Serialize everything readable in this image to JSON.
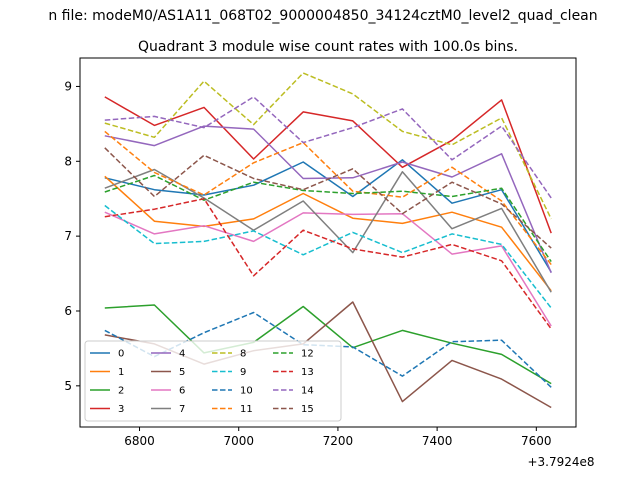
{
  "suptitle": "n file: modeM0/AS1A11_068T02_9000004850_34124cztM0_level2_quad_clean",
  "chart_data": {
    "type": "line",
    "title": "Quadrant 3 module wise count rates with 100.0s bins.",
    "xlabel": "",
    "ylabel": "",
    "x_offset_label": "+3.7924e8",
    "x": [
      6730,
      6830,
      6930,
      7030,
      7130,
      7230,
      7330,
      7430,
      7530,
      7630
    ],
    "xlim": [
      6680,
      7680
    ],
    "ylim": [
      4.45,
      9.38
    ],
    "xticks": [
      6800,
      7000,
      7200,
      7400,
      7600
    ],
    "xtick_labels": [
      "6800",
      "7000",
      "7200",
      "7400",
      "7600"
    ],
    "yticks": [
      5,
      6,
      7,
      8,
      9
    ],
    "ytick_labels": [
      "5",
      "6",
      "7",
      "8",
      "9"
    ],
    "grid": false,
    "legend_position": "lower-left",
    "legend_columns": 4,
    "series": [
      {
        "name": "0",
        "color": "#1f77b4",
        "dash": "solid",
        "values": [
          7.78,
          7.62,
          7.55,
          7.68,
          7.99,
          7.53,
          8.02,
          7.44,
          7.62,
          6.52
        ]
      },
      {
        "name": "1",
        "color": "#ff7f0e",
        "dash": "solid",
        "values": [
          7.8,
          7.2,
          7.13,
          7.23,
          7.57,
          7.24,
          7.17,
          7.32,
          7.12,
          6.27
        ]
      },
      {
        "name": "2",
        "color": "#2ca02c",
        "dash": "solid",
        "values": [
          6.04,
          6.08,
          5.44,
          5.58,
          6.06,
          5.51,
          5.74,
          5.57,
          5.42,
          5.03
        ]
      },
      {
        "name": "3",
        "color": "#d62728",
        "dash": "solid",
        "values": [
          8.86,
          8.48,
          8.72,
          8.03,
          8.66,
          8.54,
          7.92,
          8.28,
          8.82,
          7.04
        ]
      },
      {
        "name": "4",
        "color": "#9467bd",
        "dash": "solid",
        "values": [
          8.34,
          8.21,
          8.47,
          8.43,
          7.77,
          7.78,
          7.99,
          7.79,
          8.1,
          6.51
        ]
      },
      {
        "name": "5",
        "color": "#8c564b",
        "dash": "solid",
        "values": [
          5.68,
          5.56,
          5.29,
          5.47,
          5.56,
          6.12,
          4.79,
          5.34,
          5.09,
          4.71
        ]
      },
      {
        "name": "6",
        "color": "#e377c2",
        "dash": "solid",
        "values": [
          7.32,
          7.03,
          7.14,
          6.93,
          7.31,
          7.29,
          7.3,
          6.76,
          6.87,
          5.8
        ]
      },
      {
        "name": "7",
        "color": "#7f7f7f",
        "dash": "solid",
        "values": [
          7.64,
          7.89,
          7.51,
          7.08,
          7.47,
          6.78,
          7.86,
          7.1,
          7.37,
          6.25
        ]
      },
      {
        "name": "8",
        "color": "#bcbd22",
        "dash": "dashed",
        "values": [
          8.51,
          8.32,
          9.07,
          8.49,
          9.18,
          8.9,
          8.4,
          8.22,
          8.58,
          7.23
        ]
      },
      {
        "name": "9",
        "color": "#17becf",
        "dash": "dashed",
        "values": [
          7.41,
          6.9,
          6.93,
          7.07,
          6.75,
          7.05,
          6.78,
          7.03,
          6.89,
          6.04
        ]
      },
      {
        "name": "10",
        "color": "#1f77b4",
        "dash": "dashed",
        "values": [
          5.74,
          5.39,
          5.71,
          5.98,
          5.55,
          5.52,
          5.13,
          5.59,
          5.61,
          4.98
        ]
      },
      {
        "name": "11",
        "color": "#ff7f0e",
        "dash": "dashed",
        "values": [
          8.4,
          7.85,
          7.55,
          7.98,
          8.25,
          7.6,
          7.52,
          7.92,
          7.47,
          6.62
        ]
      },
      {
        "name": "12",
        "color": "#2ca02c",
        "dash": "dashed",
        "values": [
          7.59,
          7.81,
          7.48,
          7.72,
          7.61,
          7.57,
          7.6,
          7.53,
          7.64,
          6.66
        ]
      },
      {
        "name": "13",
        "color": "#d62728",
        "dash": "dashed",
        "values": [
          7.26,
          7.36,
          7.5,
          6.47,
          7.08,
          6.83,
          6.72,
          6.89,
          6.67,
          5.76
        ]
      },
      {
        "name": "14",
        "color": "#9467bd",
        "dash": "dashed",
        "values": [
          8.55,
          8.6,
          8.45,
          8.86,
          8.25,
          8.45,
          8.7,
          8.02,
          8.47,
          7.51
        ]
      },
      {
        "name": "15",
        "color": "#8c564b",
        "dash": "dashed",
        "values": [
          8.18,
          7.53,
          8.08,
          7.77,
          7.62,
          7.9,
          7.3,
          7.72,
          7.43,
          6.84
        ]
      }
    ]
  }
}
